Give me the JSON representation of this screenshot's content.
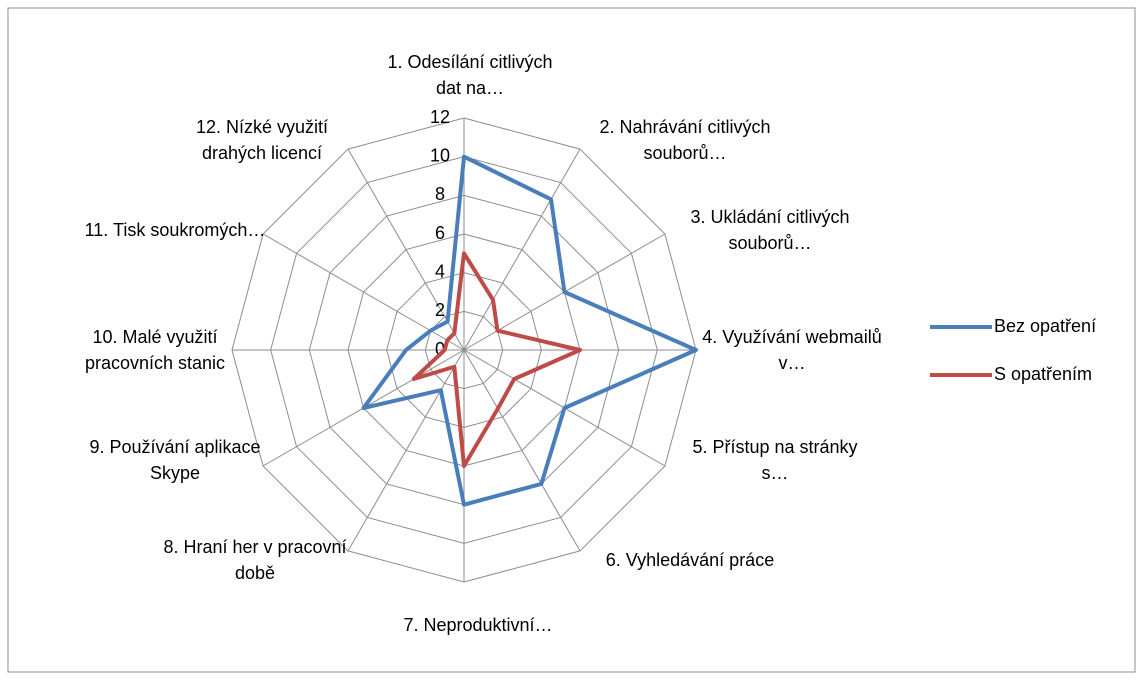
{
  "chart_data": {
    "type": "radar",
    "categories": [
      "1. Odesílání citlivých dat na…",
      "2. Nahrávání citlivých souborů…",
      "3. Ukládání citlivých souborů…",
      "4. Využívání webmailů v…",
      "5. Přístup na stránky s…",
      "6. Vyhledávání práce",
      "7. Neproduktivní…",
      "8. Hraní her v pracovní době",
      "9. Používání aplikace Skype",
      "10. Malé využití pracovních stanic",
      "11. Tisk soukromých…",
      "12. Nízké využití drahých licencí"
    ],
    "series": [
      {
        "name": "Bez opatření",
        "color": "#4a7ebb",
        "values": [
          10,
          9,
          6,
          12,
          6,
          8,
          8,
          2.4,
          6,
          3,
          2,
          1.7
        ]
      },
      {
        "name": "S opatřením",
        "color": "#be4b48",
        "values": [
          5,
          3,
          2,
          6,
          3,
          3.5,
          6,
          1,
          3,
          1,
          1,
          1
        ]
      }
    ],
    "ylim": [
      0,
      12
    ],
    "yticks": [
      0,
      2,
      4,
      6,
      8,
      10,
      12
    ],
    "grid": true,
    "legend": "right"
  }
}
